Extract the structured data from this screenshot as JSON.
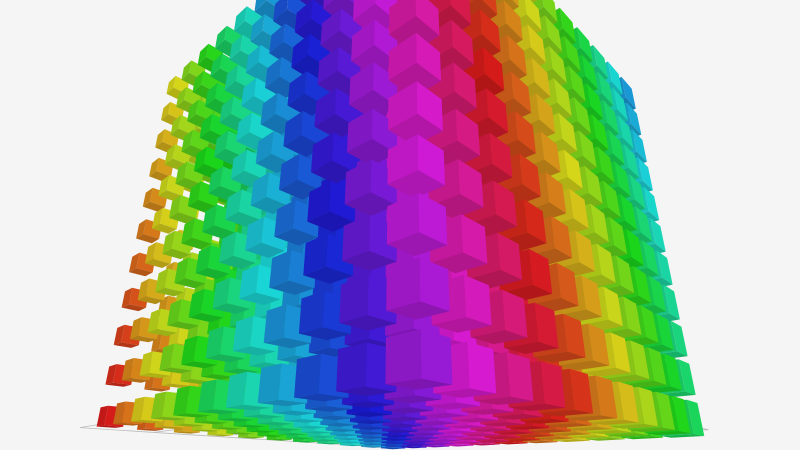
{
  "chart_data": {
    "type": "scatter3D",
    "symbol": "cube",
    "color_encoding": "hue",
    "grid_lines": true,
    "axis_labels_visible": false,
    "background": "#f5f5f5",
    "grid_color": "#bbbbbb"
  }
}
